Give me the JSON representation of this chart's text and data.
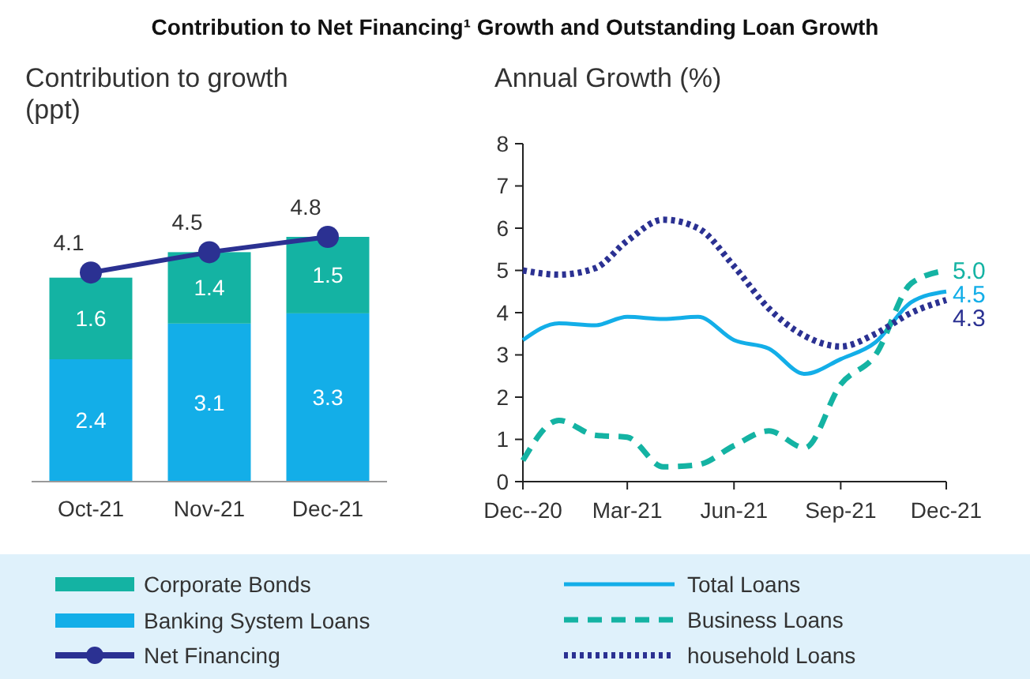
{
  "chart_data": [
    {
      "type": "bar",
      "title": "Contribution to Net Financing¹ Growth and Outstanding Loan Growth",
      "ylabel": "Contribution to growth (ppt)",
      "categories": [
        "Oct-21",
        "Nov-21",
        "Dec-21"
      ],
      "stacked": true,
      "data_labels": true,
      "legend": "bottom",
      "series": [
        {
          "name": "Banking System Loans",
          "color": "#13aee8",
          "values": [
            2.4,
            3.1,
            3.3
          ]
        },
        {
          "name": "Corporate Bonds",
          "color": "#14b3a3",
          "values": [
            1.6,
            1.4,
            1.5
          ]
        },
        {
          "name": "Net Financing",
          "type": "line",
          "color": "#2b3192",
          "marker": "circle",
          "values": [
            4.1,
            4.5,
            4.8
          ]
        }
      ]
    },
    {
      "type": "line",
      "ylabel": "Annual Growth (%)",
      "legend": "bottom",
      "x": [
        "2020-12",
        "2021-01",
        "2021-02",
        "2021-03",
        "2021-04",
        "2021-05",
        "2021-06",
        "2021-07",
        "2021-08",
        "2021-09",
        "2021-10",
        "2021-11",
        "2021-12"
      ],
      "xlim": [
        "2020-12",
        "2021-12"
      ],
      "xticks": [
        {
          "value": "2020-12",
          "label": "Dec--20"
        },
        {
          "value": "2021-03",
          "label": "Mar-21"
        },
        {
          "value": "2021-06",
          "label": "Jun-21"
        },
        {
          "value": "2021-09",
          "label": "Sep-21"
        },
        {
          "value": "2021-12",
          "label": "Dec-21"
        }
      ],
      "ylim": [
        0,
        8
      ],
      "yticks": [
        0,
        1,
        2,
        3,
        4,
        5,
        6,
        7,
        8
      ],
      "series": [
        {
          "name": "Total Loans",
          "color": "#13aee8",
          "line_style": "solid",
          "values": [
            3.35,
            3.75,
            3.7,
            3.9,
            3.85,
            3.9,
            3.35,
            3.15,
            2.55,
            2.9,
            3.3,
            4.25,
            4.5
          ],
          "value_labels": [
            null,
            null,
            null,
            null,
            null,
            null,
            null,
            null,
            null,
            null,
            null,
            null,
            "4.5"
          ]
        },
        {
          "name": "Business Loans",
          "color": "#14b3a3",
          "line_style": "dashed",
          "values": [
            0.5,
            1.45,
            1.1,
            1.05,
            0.35,
            0.4,
            0.85,
            1.2,
            0.8,
            2.3,
            3.0,
            4.7,
            5.0
          ],
          "value_labels": [
            null,
            null,
            null,
            null,
            null,
            null,
            null,
            null,
            null,
            null,
            null,
            null,
            "5.0"
          ]
        },
        {
          "name": "household Loans",
          "color": "#2b3192",
          "line_style": "dotted",
          "values": [
            5.0,
            4.9,
            5.05,
            5.7,
            6.2,
            6.0,
            5.1,
            4.1,
            3.45,
            3.2,
            3.5,
            4.0,
            4.3
          ],
          "value_labels": [
            null,
            null,
            null,
            null,
            null,
            null,
            null,
            null,
            null,
            null,
            null,
            null,
            "4.3"
          ]
        }
      ]
    }
  ]
}
